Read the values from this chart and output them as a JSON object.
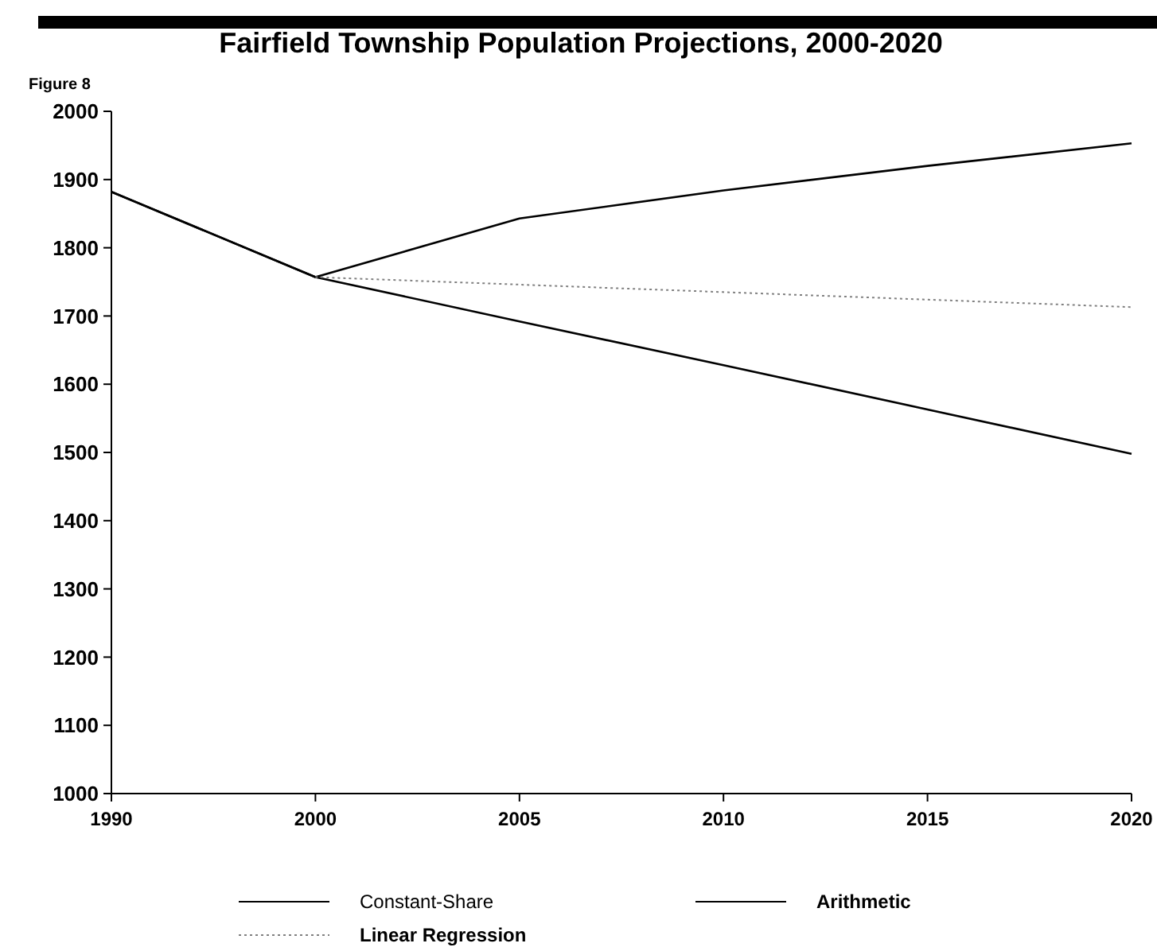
{
  "chart_data": {
    "type": "line",
    "title": "Fairfield Township Population Projections, 2000-2020",
    "annotations": [
      "Figure 8"
    ],
    "categories": [
      "1990",
      "2000",
      "2005",
      "2010",
      "2015",
      "2020"
    ],
    "series": [
      {
        "name": "Constant-Share",
        "color": "#000000",
        "line_style": "solid",
        "values": [
          1882,
          1757,
          1843,
          1884,
          1920,
          1953
        ]
      },
      {
        "name": "Arithmetic",
        "color": "#000000",
        "line_style": "solid",
        "values": [
          1882,
          1757,
          1692,
          1628,
          1563,
          1498
        ]
      },
      {
        "name": "Linear Regression",
        "color": "#808080",
        "line_style": "dotted",
        "values": [
          null,
          1757,
          1746,
          1735,
          1724,
          1713
        ]
      }
    ],
    "ylim": [
      1000,
      2000
    ],
    "yticks": [
      1000,
      1100,
      1200,
      1300,
      1400,
      1500,
      1600,
      1700,
      1800,
      1900,
      2000
    ],
    "grid": false,
    "legend": "bottom",
    "marker": "none"
  }
}
